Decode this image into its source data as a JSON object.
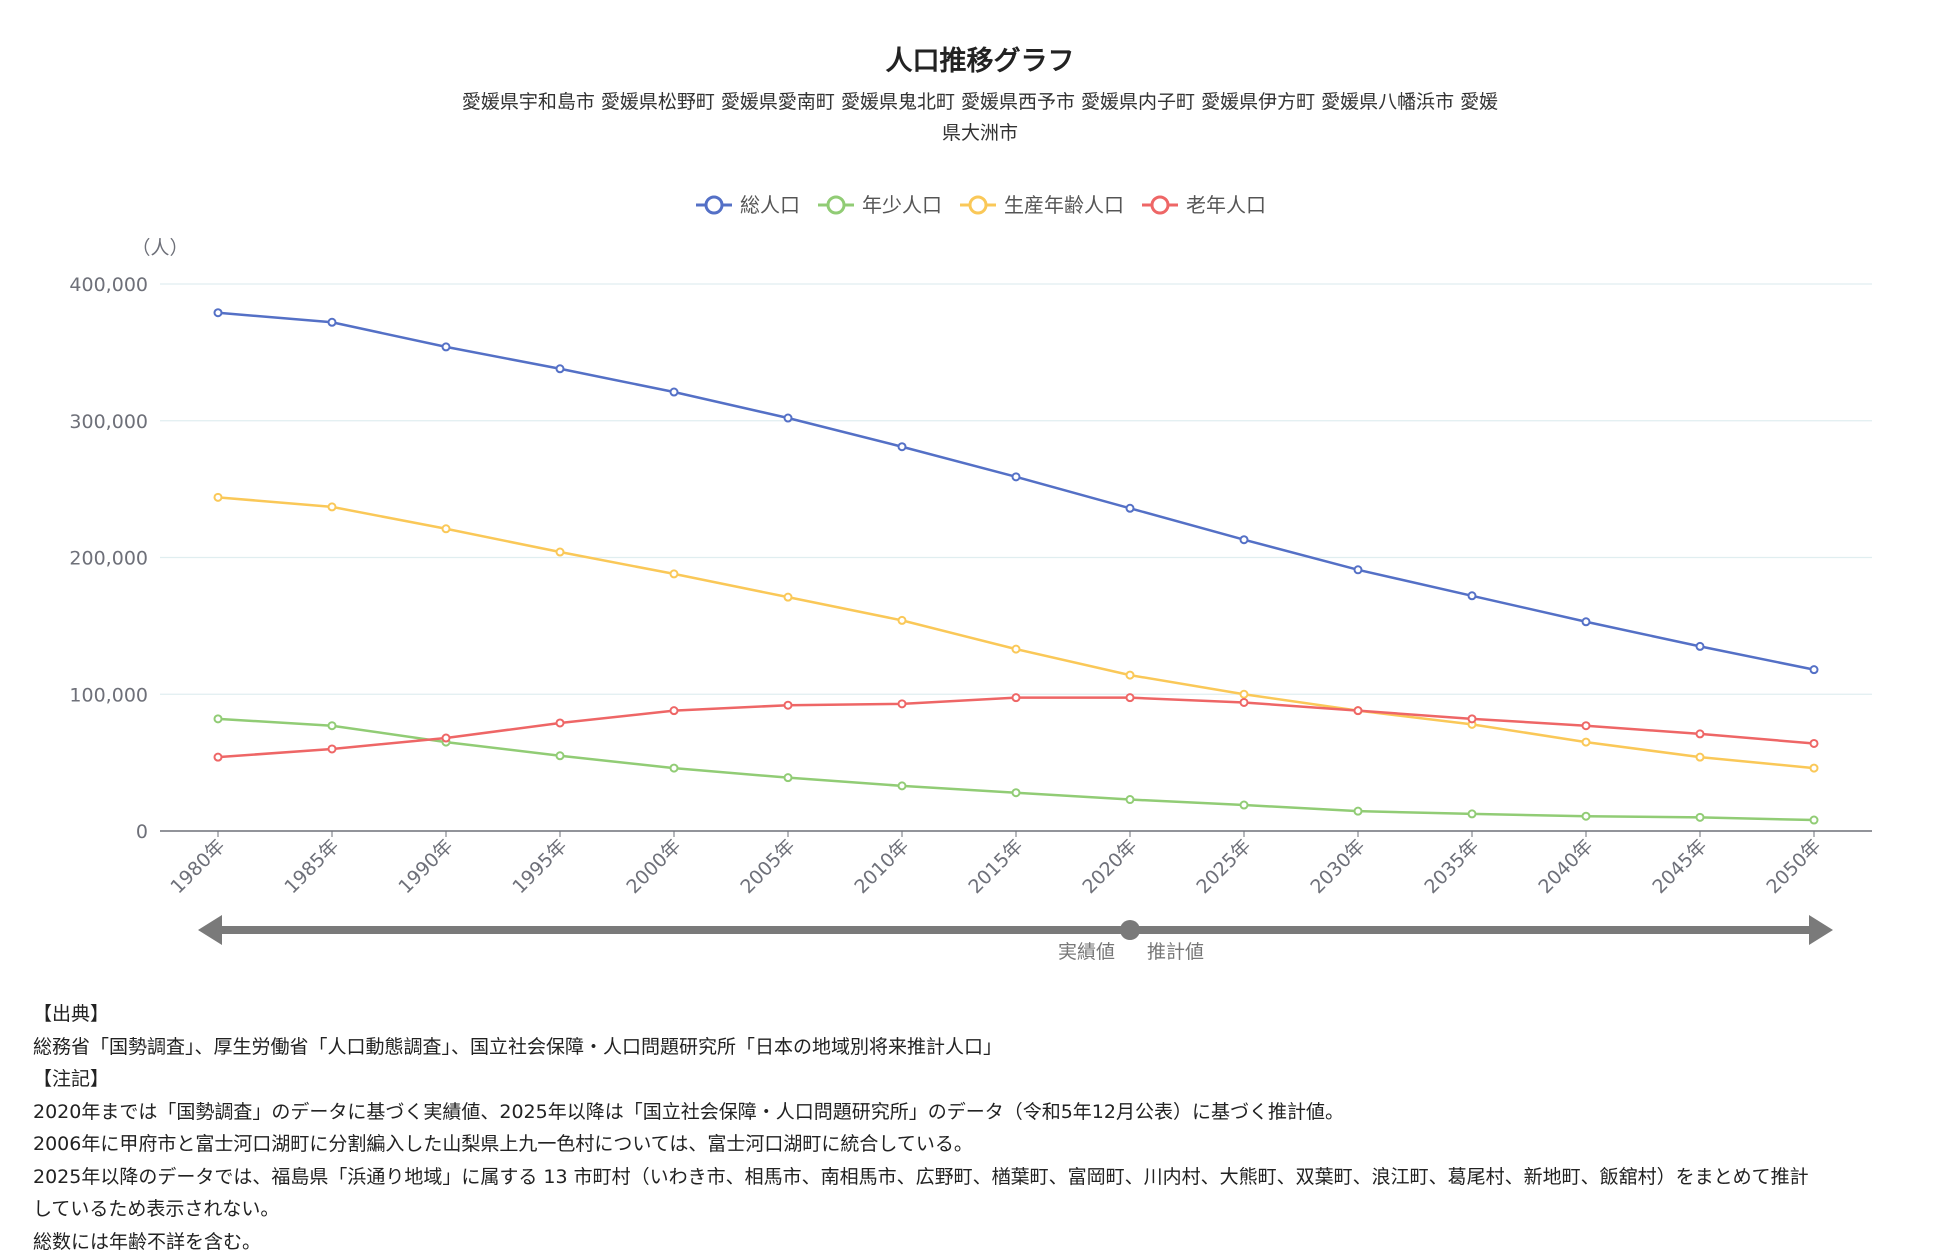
{
  "chart_data": {
    "type": "line",
    "title": "人口推移グラフ",
    "subtitle": [
      "愛媛県宇和島市 愛媛県松野町 愛媛県愛南町 愛媛県鬼北町 愛媛県西予市 愛媛県内子町 愛媛県伊方町 愛媛県八幡浜市 愛媛",
      "県大洲市"
    ],
    "ylabel": "（人）",
    "ylim": [
      0,
      400000
    ],
    "yticks": [
      {
        "v": 0,
        "label": "0"
      },
      {
        "v": 100000,
        "label": "100,000"
      },
      {
        "v": 200000,
        "label": "200,000"
      },
      {
        "v": 300000,
        "label": "300,000"
      },
      {
        "v": 400000,
        "label": "400,000"
      }
    ],
    "categories": [
      "1980年",
      "1985年",
      "1990年",
      "1995年",
      "2000年",
      "2005年",
      "2010年",
      "2015年",
      "2020年",
      "2025年",
      "2030年",
      "2035年",
      "2040年",
      "2045年",
      "2050年"
    ],
    "legend_position": "top-center",
    "grid": true,
    "series": [
      {
        "name": "総人口",
        "color": "#5470c6",
        "values": [
          379000,
          372000,
          354000,
          338000,
          321000,
          302000,
          281000,
          259000,
          236000,
          213000,
          191000,
          172000,
          153000,
          135000,
          118000
        ]
      },
      {
        "name": "年少人口",
        "color": "#91cc75",
        "values": [
          82000,
          77000,
          65000,
          55000,
          46000,
          39000,
          33000,
          28000,
          23000,
          19000,
          14500,
          12500,
          10800,
          10000,
          8000
        ]
      },
      {
        "name": "生産年齢人口",
        "color": "#fac858",
        "values": [
          244000,
          237000,
          221000,
          204000,
          188000,
          171000,
          154000,
          133000,
          114000,
          100000,
          88000,
          78000,
          65000,
          54000,
          46000
        ]
      },
      {
        "name": "老年人口",
        "color": "#ee6666",
        "values": [
          54000,
          60000,
          68000,
          79000,
          88000,
          92000,
          93000,
          97500,
          97500,
          94000,
          88000,
          82000,
          77000,
          71000,
          64000
        ]
      }
    ],
    "annotation": {
      "actual": "実績値",
      "projection": "推計値",
      "split_after": "2020年"
    }
  },
  "notes": [
    "【出典】",
    "総務省「国勢調査」、厚生労働省「人口動態調査」、国立社会保障・人口問題研究所「日本の地域別将来推計人口」",
    "【注記】",
    "2020年までは「国勢調査」のデータに基づく実績値、2025年以降は「国立社会保障・人口問題研究所」のデータ（令和5年12月公表）に基づく推計値。",
    "2006年に甲府市と富士河口湖町に分割編入した山梨県上九一色村については、富士河口湖町に統合している。",
    "2025年以降のデータでは、福島県「浜通り地域」に属する 13 市町村（いわき市、相馬市、南相馬市、広野町、楢葉町、富岡町、川内村、大熊町、双葉町、浪江町、葛尾村、新地町、飯舘村）をまとめて推計",
    "しているため表示されない。",
    "総数には年齢不詳を含む。"
  ]
}
